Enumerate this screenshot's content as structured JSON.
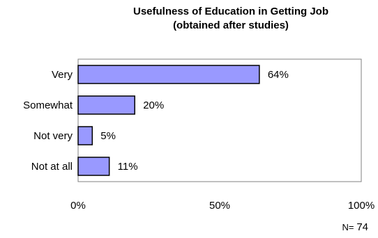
{
  "chart_data": {
    "type": "bar",
    "orientation": "horizontal",
    "title_lines": [
      "Usefulness of Education in Getting Job",
      "(obtained after studies)"
    ],
    "categories": [
      "Very",
      "Somewhat",
      "Not very",
      "Not at all"
    ],
    "values": [
      64,
      20,
      5,
      11
    ],
    "data_labels": [
      "64%",
      "20%",
      "5%",
      "11%"
    ],
    "x_ticks": [
      "0%",
      "50%",
      "100%"
    ],
    "xlim": [
      0,
      100
    ],
    "grid": false,
    "legend": "none",
    "bar_color": "#9999ff",
    "bar_border_color": "#000000"
  },
  "footer": {
    "sample_size_prefix": "N=",
    "sample_size_value": "74"
  }
}
